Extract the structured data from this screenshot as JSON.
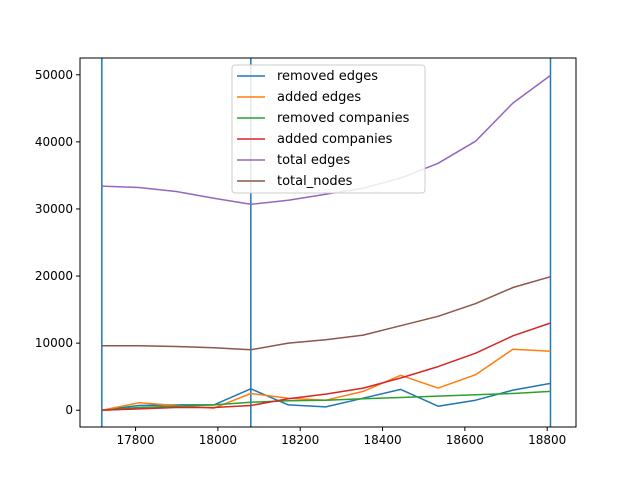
{
  "chart_data": {
    "type": "line",
    "title": "",
    "xlabel": "",
    "ylabel": "",
    "xlim": [
      17665,
      18870
    ],
    "ylim": [
      -2500,
      52500
    ],
    "x_ticks": [
      17800,
      18000,
      18200,
      18400,
      18600,
      18800
    ],
    "y_ticks": [
      0,
      10000,
      20000,
      30000,
      40000,
      50000
    ],
    "grid": false,
    "legend_position": "top-center",
    "vertical_lines": [
      17718,
      18080,
      18808
    ],
    "vertical_line_color": "#1f77b4",
    "x": [
      17718,
      17808,
      17899,
      17990,
      18080,
      18171,
      18262,
      18353,
      18444,
      18535,
      18626,
      18717,
      18808
    ],
    "series": [
      {
        "name": "removed edges",
        "color": "#1f77b4",
        "values": [
          0,
          700,
          800,
          800,
          3200,
          800,
          500,
          1800,
          3100,
          600,
          1500,
          3000,
          4000
        ]
      },
      {
        "name": "added edges",
        "color": "#ff7f0e",
        "values": [
          0,
          1100,
          700,
          300,
          2500,
          1800,
          1500,
          2800,
          5200,
          3300,
          5300,
          9100,
          8800
        ]
      },
      {
        "name": "removed companies",
        "color": "#2ca02c",
        "values": [
          0,
          400,
          600,
          800,
          1200,
          1400,
          1500,
          1700,
          1900,
          2100,
          2300,
          2500,
          2800
        ]
      },
      {
        "name": "added companies",
        "color": "#d62728",
        "values": [
          0,
          200,
          400,
          400,
          700,
          1700,
          2400,
          3300,
          4800,
          6500,
          8500,
          11100,
          13000
        ]
      },
      {
        "name": "total edges",
        "color": "#9467bd",
        "values": [
          33400,
          33200,
          32600,
          31600,
          30700,
          31300,
          32200,
          33100,
          34600,
          36800,
          40100,
          45800,
          49900
        ]
      },
      {
        "name": "total_nodes",
        "color": "#8c564b",
        "values": [
          9600,
          9600,
          9500,
          9300,
          9000,
          10000,
          10500,
          11200,
          12600,
          14000,
          15900,
          18300,
          19900
        ]
      }
    ]
  }
}
